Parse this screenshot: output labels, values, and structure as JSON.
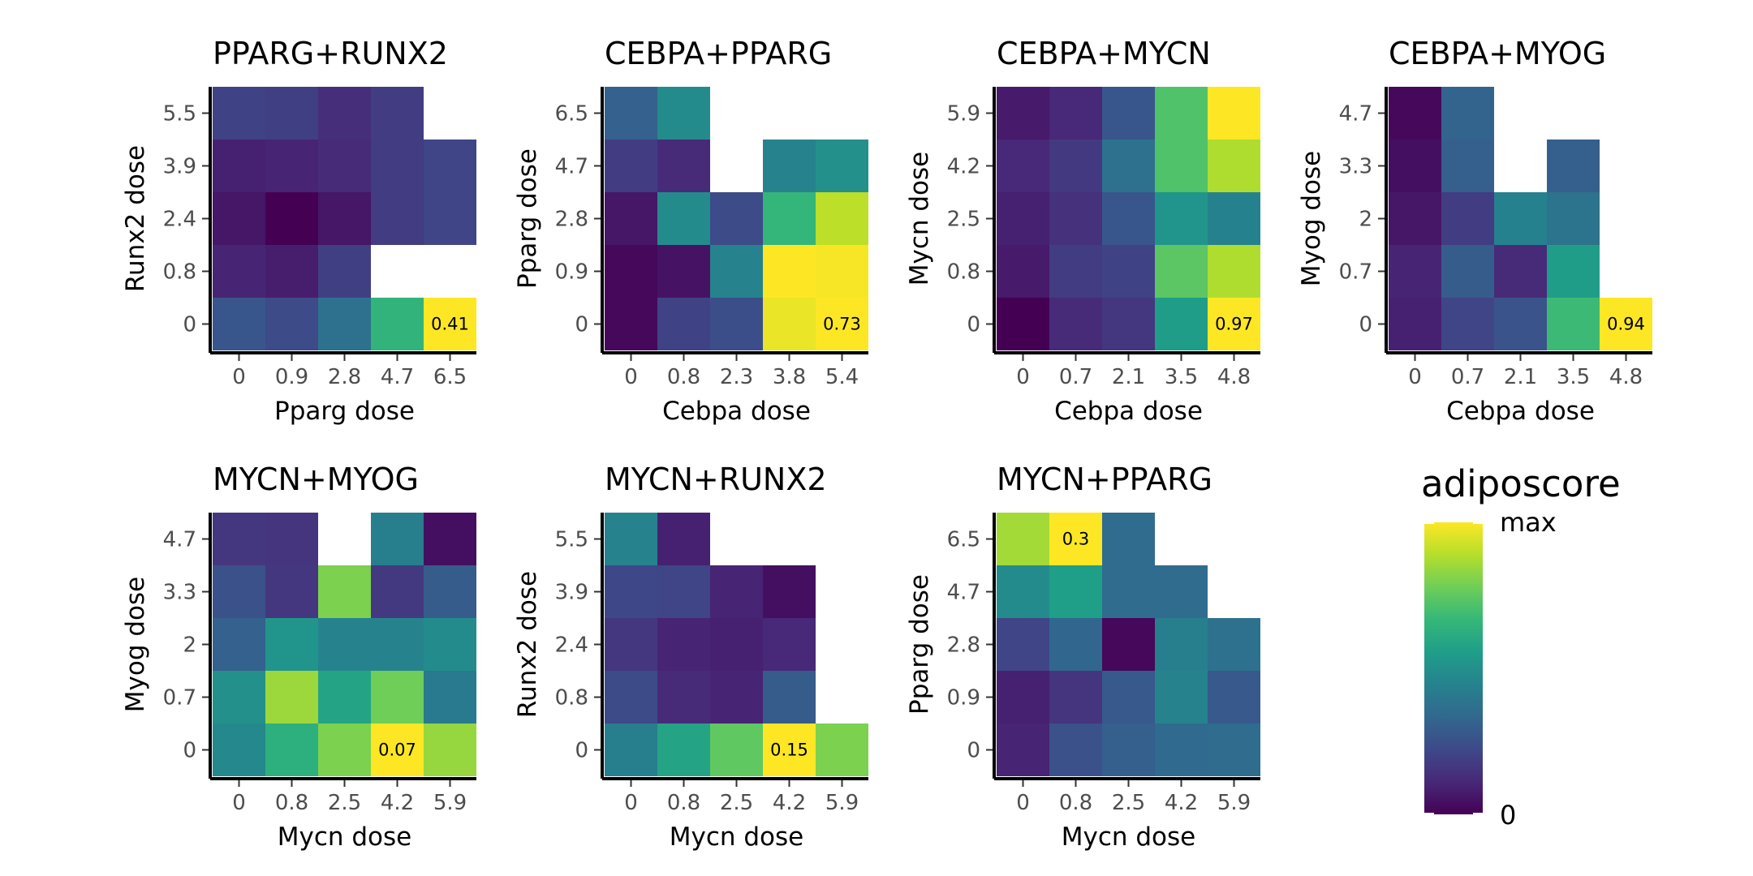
{
  "chart_data": [
    {
      "type": "heatmap",
      "title": "PPARG+RUNX2",
      "xlabel": "Pparg dose",
      "ylabel": "Runx2 dose",
      "x_categories": [
        "0",
        "0.9",
        "2.8",
        "4.7",
        "6.5"
      ],
      "y_categories": [
        "0",
        "0.8",
        "2.4",
        "3.9",
        "5.5"
      ],
      "values_normalized": [
        [
          0.27,
          0.23,
          0.37,
          0.65,
          1.0
        ],
        [
          0.1,
          0.08,
          0.19,
          null,
          null
        ],
        [
          0.06,
          0.0,
          0.06,
          0.18,
          0.21
        ],
        [
          0.09,
          0.1,
          0.12,
          0.18,
          0.21
        ],
        [
          0.2,
          0.19,
          0.13,
          0.18,
          null
        ]
      ],
      "max_label": "0.41"
    },
    {
      "type": "heatmap",
      "title": "CEBPA+PPARG",
      "xlabel": "Cebpa dose",
      "ylabel": "Pparg dose",
      "x_categories": [
        "0",
        "0.8",
        "2.3",
        "3.8",
        "5.4"
      ],
      "y_categories": [
        "0",
        "0.9",
        "2.8",
        "4.7",
        "6.5"
      ],
      "values_normalized": [
        [
          0.02,
          0.2,
          0.24,
          0.97,
          1.0
        ],
        [
          0.02,
          0.05,
          0.45,
          1.0,
          0.99
        ],
        [
          0.06,
          0.48,
          0.23,
          0.66,
          0.9
        ],
        [
          0.18,
          0.12,
          null,
          0.45,
          0.5
        ],
        [
          0.31,
          0.48,
          null,
          null,
          null
        ]
      ],
      "max_label": "0.73"
    },
    {
      "type": "heatmap",
      "title": "CEBPA+MYCN",
      "xlabel": "Cebpa dose",
      "ylabel": "Mycn dose",
      "x_categories": [
        "0",
        "0.7",
        "2.1",
        "3.5",
        "4.8"
      ],
      "y_categories": [
        "0",
        "0.8",
        "2.5",
        "4.2",
        "5.9"
      ],
      "values_normalized": [
        [
          0.0,
          0.12,
          0.16,
          0.55,
          1.0
        ],
        [
          0.07,
          0.18,
          0.2,
          0.74,
          0.88
        ],
        [
          0.09,
          0.14,
          0.27,
          0.52,
          0.44
        ],
        [
          0.11,
          0.17,
          0.37,
          0.72,
          0.88
        ],
        [
          0.07,
          0.11,
          0.27,
          0.72,
          1.0
        ]
      ],
      "max_label": "0.97"
    },
    {
      "type": "heatmap",
      "title": "CEBPA+MYOG",
      "xlabel": "Cebpa dose",
      "ylabel": "Myog dose",
      "x_categories": [
        "0",
        "0.7",
        "2.1",
        "3.5",
        "4.8"
      ],
      "y_categories": [
        "0",
        "0.7",
        "2",
        "3.3",
        "4.7"
      ],
      "values_normalized": [
        [
          0.09,
          0.21,
          0.26,
          0.68,
          1.0
        ],
        [
          0.1,
          0.29,
          0.12,
          0.55,
          null
        ],
        [
          0.06,
          0.18,
          0.44,
          0.38,
          null
        ],
        [
          0.04,
          0.3,
          null,
          0.3,
          null
        ],
        [
          0.02,
          0.32,
          null,
          null,
          null
        ]
      ],
      "max_label": "0.94"
    },
    {
      "type": "heatmap",
      "title": "MYCN+MYOG",
      "xlabel": "Mycn dose",
      "ylabel": "Myog dose",
      "x_categories": [
        "0",
        "0.8",
        "2.5",
        "4.2",
        "5.9"
      ],
      "y_categories": [
        "0",
        "0.7",
        "2",
        "3.3",
        "4.7"
      ],
      "values_normalized": [
        [
          0.47,
          0.63,
          0.8,
          1.0,
          0.84
        ],
        [
          0.5,
          0.85,
          0.58,
          0.78,
          0.41
        ],
        [
          0.31,
          0.52,
          0.45,
          0.45,
          0.48
        ],
        [
          0.25,
          0.16,
          0.8,
          0.17,
          0.29
        ],
        [
          0.16,
          0.15,
          null,
          0.43,
          0.04
        ]
      ],
      "max_label": "0.07"
    },
    {
      "type": "heatmap",
      "title": "MYCN+RUNX2",
      "xlabel": "Mycn dose",
      "ylabel": "Runx2 dose",
      "x_categories": [
        "0",
        "0.8",
        "2.5",
        "4.2",
        "5.9"
      ],
      "y_categories": [
        "0",
        "0.8",
        "2.4",
        "3.9",
        "5.5"
      ],
      "values_normalized": [
        [
          0.43,
          0.58,
          0.75,
          1.0,
          0.8
        ],
        [
          0.23,
          0.12,
          0.1,
          0.29,
          null
        ],
        [
          0.16,
          0.1,
          0.09,
          0.11,
          null
        ],
        [
          0.22,
          0.21,
          0.1,
          0.04,
          null
        ],
        [
          0.45,
          0.09,
          null,
          null,
          null
        ]
      ],
      "max_label": "0.15"
    },
    {
      "type": "heatmap",
      "title": "MYCN+PPARG",
      "xlabel": "Mycn dose",
      "ylabel": "Pparg dose",
      "x_categories": [
        "0",
        "0.8",
        "2.5",
        "4.2",
        "5.9"
      ],
      "y_categories": [
        "0",
        "0.9",
        "2.8",
        "4.7",
        "6.5"
      ],
      "values_normalized": [
        [
          0.1,
          0.25,
          0.3,
          0.34,
          0.35
        ],
        [
          0.09,
          0.15,
          0.28,
          0.45,
          0.28
        ],
        [
          0.21,
          0.33,
          0.02,
          0.43,
          0.37
        ],
        [
          0.48,
          0.56,
          0.35,
          0.35,
          null
        ],
        [
          0.86,
          1.0,
          0.35,
          null,
          null
        ]
      ],
      "max_label": "0.3"
    }
  ],
  "legend": {
    "title": "adiposcore",
    "max_label": "max",
    "min_label": "0",
    "colors": [
      "#440154",
      "#482878",
      "#3e4989",
      "#31688e",
      "#26828e",
      "#1f9e89",
      "#35b779",
      "#6ece58",
      "#b5de2b",
      "#fde725"
    ]
  }
}
